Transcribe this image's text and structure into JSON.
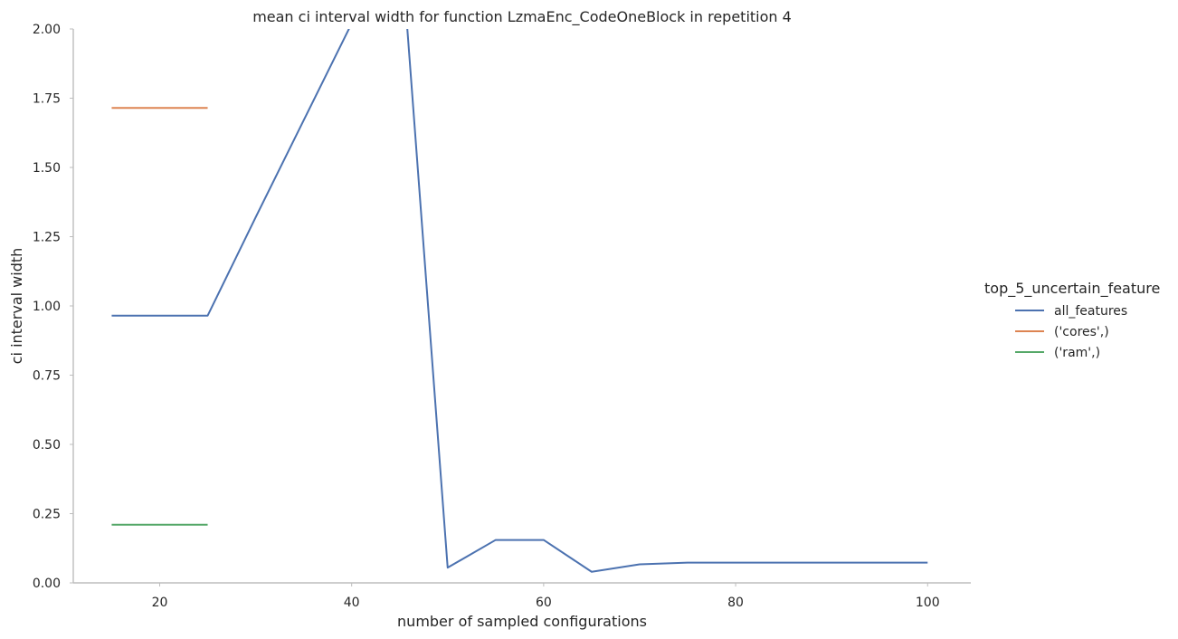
{
  "chart_data": {
    "type": "line",
    "title": "mean ci interval width for function LzmaEnc_CodeOneBlock in repetition 4",
    "xlabel": "number of sampled configurations",
    "ylabel": "ci interval width",
    "xlim": [
      11,
      104.5
    ],
    "ylim": [
      0,
      2
    ],
    "xticks": [
      20,
      40,
      60,
      80,
      100
    ],
    "yticks": [
      0.0,
      0.25,
      0.5,
      0.75,
      1.0,
      1.25,
      1.5,
      1.75,
      2.0
    ],
    "xtick_labels": [
      "20",
      "40",
      "60",
      "80",
      "100"
    ],
    "ytick_labels": [
      "0.00",
      "0.25",
      "0.50",
      "0.75",
      "1.00",
      "1.25",
      "1.50",
      "1.75",
      "2.00"
    ],
    "legend": {
      "title": "top_5_uncertain_feature",
      "placement": "right"
    },
    "series": [
      {
        "name": "all_features",
        "color": "#4c72b0",
        "x": [
          15,
          20,
          25,
          30,
          35,
          40,
          45,
          50,
          55,
          60,
          65,
          70,
          75,
          80,
          85,
          90,
          95,
          100
        ],
        "y": [
          0.965,
          0.965,
          0.965,
          1.32,
          1.67,
          2.02,
          2.37,
          0.055,
          0.155,
          0.155,
          0.04,
          0.067,
          0.073,
          0.073,
          0.073,
          0.073,
          0.073,
          0.073
        ]
      },
      {
        "name": "('cores',)",
        "color": "#dd8452",
        "x": [
          15,
          20,
          25
        ],
        "y": [
          1.715,
          1.715,
          1.715
        ]
      },
      {
        "name": "('ram',)",
        "color": "#55a868",
        "x": [
          15,
          20,
          25
        ],
        "y": [
          0.21,
          0.21,
          0.21
        ]
      }
    ]
  }
}
